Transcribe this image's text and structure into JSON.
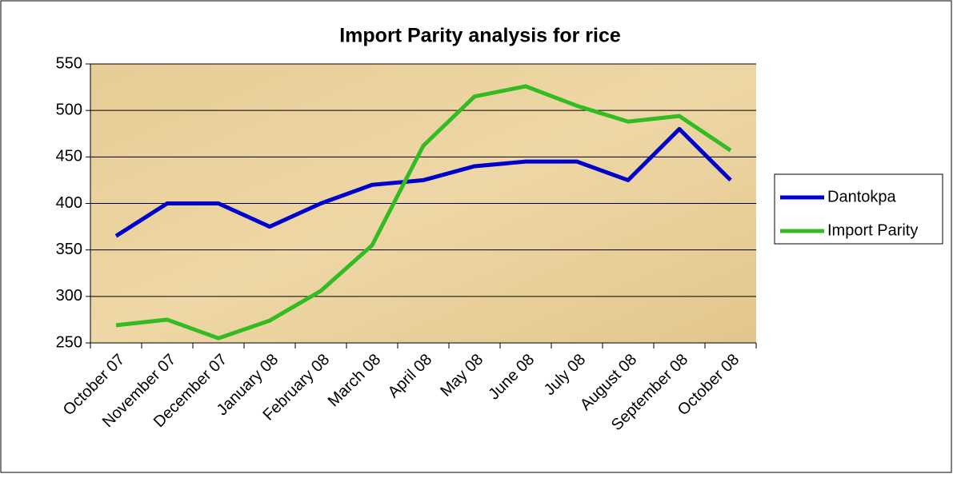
{
  "chart_data": {
    "type": "line",
    "title": "Import Parity analysis for rice",
    "categories": [
      "October 07",
      "November 07",
      "December 07",
      "January 08",
      "February 08",
      "March 08",
      "April 08",
      "May 08",
      "June 08",
      "July 08",
      "August 08",
      "September 08",
      "October 08"
    ],
    "series": [
      {
        "name": "Dantokpa",
        "color": "#0000cc",
        "values": [
          365,
          400,
          400,
          375,
          400,
          420,
          425,
          440,
          445,
          445,
          425,
          480,
          425
        ]
      },
      {
        "name": "Import Parity",
        "color": "#33bb22",
        "values": [
          269,
          275,
          255,
          274,
          306,
          355,
          462,
          515,
          526,
          505,
          488,
          494,
          457
        ]
      }
    ],
    "ylim": [
      250,
      550
    ],
    "yticks": [
      250,
      300,
      350,
      400,
      450,
      500,
      550
    ],
    "grid": true,
    "legend": "right"
  }
}
